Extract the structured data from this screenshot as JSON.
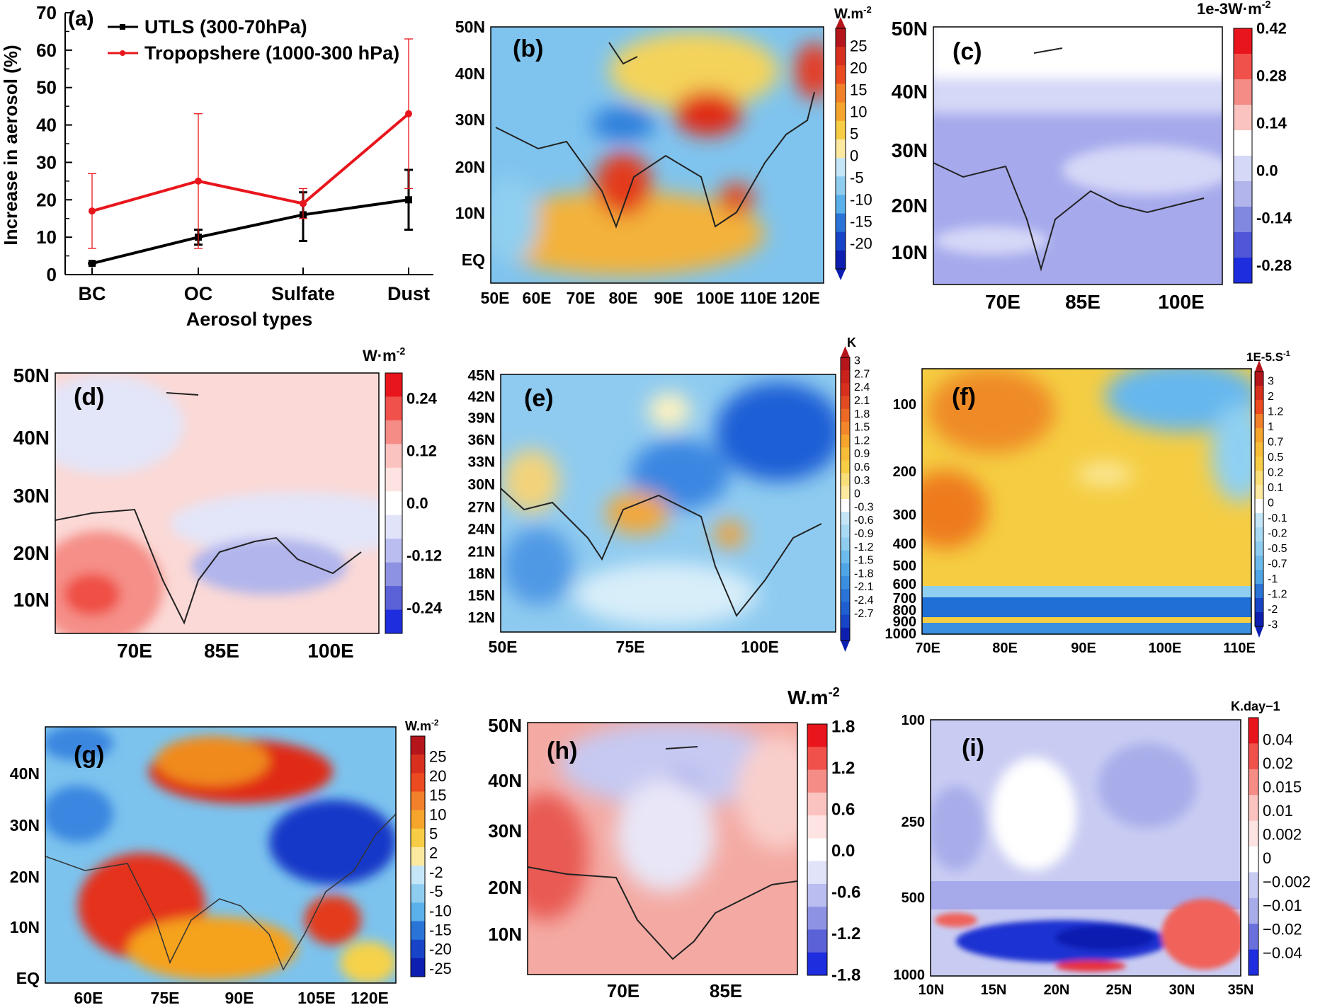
{
  "chart_data": [
    {
      "type": "line",
      "panel": "(a)",
      "xlabel": "Aerosol types",
      "ylabel": "Increase in aerosol  (%)",
      "categories": [
        "BC",
        "OC",
        "Sulfate",
        "Dust"
      ],
      "ylim": [
        0,
        70
      ],
      "yticks": [
        "0",
        "10",
        "20",
        "30",
        "40",
        "50",
        "60",
        "70"
      ],
      "legend_position": "top-left",
      "series": [
        {
          "name": "UTLS (300-70hPa)",
          "color": "#000000",
          "values": [
            3,
            10,
            16,
            20
          ],
          "err_low": [
            3,
            8,
            9,
            12
          ],
          "err_high": [
            3,
            12,
            22,
            28
          ]
        },
        {
          "name": "Tropopshere (1000-300 hPa)",
          "color": "#e8161c",
          "values": [
            17,
            25,
            19,
            43
          ],
          "err_low": [
            7,
            7,
            15,
            23
          ],
          "err_high": [
            27,
            43,
            23,
            63
          ]
        }
      ]
    },
    {
      "type": "heatmap",
      "panel": "(b)",
      "cbar_title": "W.m",
      "yticks": [
        "50N",
        "40N",
        "30N",
        "20N",
        "10N",
        "EQ"
      ],
      "xticks": [
        "50E",
        "60E",
        "70E",
        "80E",
        "90E",
        "100E",
        "110E",
        "120E"
      ],
      "cbar_ticks": [
        "25",
        "20",
        "15",
        "10",
        "5",
        "0",
        "-5",
        "-10",
        "-15",
        "-20"
      ]
    },
    {
      "type": "heatmap",
      "panel": "(c)",
      "cbar_title": "1e-3W·m",
      "yticks": [
        "50N",
        "40N",
        "30N",
        "20N",
        "10N"
      ],
      "xticks": [
        "70E",
        "85E",
        "100E"
      ],
      "cbar_ticks": [
        "0.42",
        "0.28",
        "0.14",
        "0.0",
        "-0.14",
        "-0.28"
      ]
    },
    {
      "type": "heatmap",
      "panel": "(d)",
      "cbar_title": "W·m",
      "yticks": [
        "50N",
        "40N",
        "30N",
        "20N",
        "10N"
      ],
      "xticks": [
        "70E",
        "85E",
        "100E"
      ],
      "cbar_ticks": [
        "0.24",
        "0.12",
        "0.0",
        "-0.12",
        "-0.24"
      ]
    },
    {
      "type": "heatmap",
      "panel": "(e)",
      "cbar_title": "K",
      "yticks": [
        "45N",
        "42N",
        "39N",
        "36N",
        "33N",
        "30N",
        "27N",
        "24N",
        "21N",
        "18N",
        "15N",
        "12N"
      ],
      "xticks": [
        "50E",
        "75E",
        "100E"
      ],
      "cbar_ticks": [
        "3",
        "2.7",
        "2.4",
        "2.1",
        "1.8",
        "1.5",
        "1.2",
        "0.9",
        "0.6",
        "0.3",
        "0",
        "-0.3",
        "-0.6",
        "-0.9",
        "-1.2",
        "-1.5",
        "-1.8",
        "-2.1",
        "-2.4",
        "-2.7"
      ]
    },
    {
      "type": "heatmap",
      "panel": "(f)",
      "cbar_title": "1E-5.S",
      "yticks": [
        "100",
        "200",
        "300",
        "400",
        "500",
        "600",
        "700",
        "800",
        "900",
        "1000"
      ],
      "xticks": [
        "70E",
        "80E",
        "90E",
        "100E",
        "110E"
      ],
      "cbar_ticks": [
        "3",
        "2",
        "1.2",
        "1",
        "0.7",
        "0.5",
        "0.2",
        "0.1",
        "0",
        "-0.1",
        "-0.2",
        "-0.5",
        "-0.7",
        "-1",
        "-1.2",
        "-2",
        "-3"
      ]
    },
    {
      "type": "heatmap",
      "panel": "(g)",
      "cbar_title": "W.m",
      "yticks": [
        "40N",
        "30N",
        "20N",
        "10N",
        "EQ"
      ],
      "xticks": [
        "60E",
        "75E",
        "90E",
        "105E",
        "120E"
      ],
      "cbar_ticks": [
        "25",
        "20",
        "15",
        "10",
        "5",
        "2",
        "-2",
        "-5",
        "-10",
        "-15",
        "-20",
        "-25"
      ]
    },
    {
      "type": "heatmap",
      "panel": "(h)",
      "cbar_title": "W.m",
      "yticks": [
        "50N",
        "40N",
        "30N",
        "20N",
        "10N"
      ],
      "xticks": [
        "70E",
        "85E"
      ],
      "cbar_ticks": [
        "1.8",
        "1.2",
        "0.6",
        "0.0",
        "-0.6",
        "-1.2",
        "-1.8"
      ]
    },
    {
      "type": "heatmap",
      "panel": "(i)",
      "cbar_title": "K.day−1",
      "yticks": [
        "100",
        "250",
        "500",
        "1000"
      ],
      "xticks": [
        "10N",
        "15N",
        "20N",
        "25N",
        "30N",
        "35N"
      ],
      "cbar_ticks": [
        "0.04",
        "0.02",
        "0.015",
        "0.01",
        "0.002",
        "0",
        "−0.002",
        "−0.01",
        "−0.02",
        "−0.04"
      ]
    }
  ],
  "unit_exp": "-2",
  "unit_exp_s": "-1",
  "colors": {
    "blue_dark": "#1432c8",
    "blue_mid": "#3b8fe0",
    "blue_light": "#b7ddf5",
    "yellow": "#f2d64a",
    "orange": "#f08a1c",
    "red": "#de2a17",
    "pink": "#fbd5d2",
    "lavender": "#b9bdf0"
  }
}
